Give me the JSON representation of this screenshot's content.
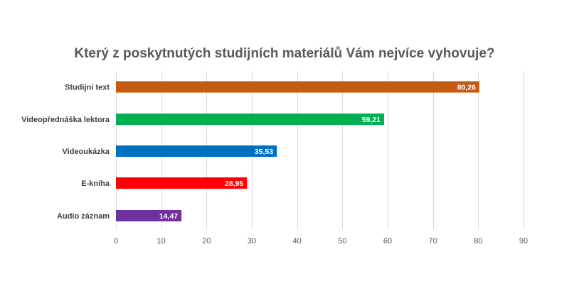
{
  "chart_data": {
    "type": "bar",
    "orientation": "horizontal",
    "title": "Který z poskytnutých studijních materiálů Vám nejvíce vyhovuje?",
    "xlabel": "",
    "ylabel": "",
    "xlim": [
      0,
      90
    ],
    "ticks": [
      0,
      10,
      20,
      30,
      40,
      50,
      60,
      70,
      80,
      90
    ],
    "grid": true,
    "legend": "none",
    "categories": [
      "Studijní text",
      "Videopřednáška lektora",
      "Videoukázka",
      "E-kniha",
      "Audio záznam"
    ],
    "values": [
      80.26,
      59.21,
      35.53,
      28.95,
      14.47
    ],
    "data_labels": [
      "80,26",
      "59,21",
      "35,53",
      "28,95",
      "14,47"
    ],
    "colors": [
      "#C55A11",
      "#00B050",
      "#0070C0",
      "#FF0000",
      "#7030A0"
    ]
  }
}
